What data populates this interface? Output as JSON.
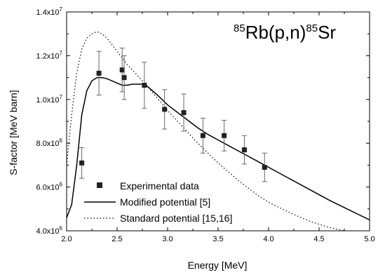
{
  "chart_data": {
    "type": "scatter",
    "title": "",
    "annotation": {
      "mass1": "85",
      "text1": "Rb(p,n)",
      "mass2": "85",
      "text2": "Sr"
    },
    "xlabel": "Energy [MeV]",
    "ylabel": "S-factor [MeV barn]",
    "xlim": [
      2.0,
      5.0
    ],
    "ylim": [
      4000000,
      14000000
    ],
    "x_ticks": [
      2.0,
      2.5,
      3.0,
      3.5,
      4.0,
      4.5,
      5.0
    ],
    "x_tick_labels": [
      "2.0",
      "2.5",
      "3.0",
      "3.5",
      "4.0",
      "4.5",
      "5.0"
    ],
    "y_ticks": [
      4000000,
      6000000,
      8000000,
      10000000,
      12000000,
      14000000
    ],
    "y_tick_labels": [
      {
        "mantissa": "4.0x10",
        "exp": "6"
      },
      {
        "mantissa": "6.0x10",
        "exp": "6"
      },
      {
        "mantissa": "8.0x10",
        "exp": "6"
      },
      {
        "mantissa": "1.0x10",
        "exp": "7"
      },
      {
        "mantissa": "1.2x10",
        "exp": "7"
      },
      {
        "mantissa": "1.4x10",
        "exp": "7"
      }
    ],
    "grid": false,
    "legend_position": "bottom-left",
    "series": [
      {
        "name": "Experimental data",
        "kind": "points",
        "marker": "square",
        "points": [
          {
            "x": 2.15,
            "y": 7100000,
            "err": 700000
          },
          {
            "x": 2.32,
            "y": 11200000,
            "err": 1000000
          },
          {
            "x": 2.55,
            "y": 11350000,
            "err": 1000000
          },
          {
            "x": 2.57,
            "y": 11000000,
            "err": 1000000
          },
          {
            "x": 2.77,
            "y": 10650000,
            "err": 1050000
          },
          {
            "x": 2.97,
            "y": 9550000,
            "err": 900000
          },
          {
            "x": 3.16,
            "y": 9400000,
            "err": 850000
          },
          {
            "x": 3.35,
            "y": 8350000,
            "err": 800000
          },
          {
            "x": 3.56,
            "y": 8350000,
            "err": 700000
          },
          {
            "x": 3.76,
            "y": 7700000,
            "err": 650000
          },
          {
            "x": 3.96,
            "y": 6900000,
            "err": 650000
          }
        ]
      },
      {
        "name": "Modified potential [5]",
        "kind": "line",
        "style": "solid",
        "x": [
          2.0,
          2.05,
          2.1,
          2.15,
          2.2,
          2.25,
          2.3,
          2.35,
          2.4,
          2.45,
          2.5,
          2.55,
          2.6,
          2.65,
          2.7,
          2.75,
          2.8,
          2.9,
          3.0,
          3.1,
          3.2,
          3.3,
          3.4,
          3.5,
          3.6,
          3.7,
          3.8,
          3.9,
          4.0,
          4.2,
          4.4,
          4.6,
          4.8,
          5.0
        ],
        "y": [
          4600000,
          5200000,
          7000000,
          9300000,
          10400000,
          10850000,
          11000000,
          11000000,
          10950000,
          10850000,
          10750000,
          10650000,
          10650000,
          10700000,
          10700000,
          10700000,
          10600000,
          10200000,
          9750000,
          9400000,
          9050000,
          8700000,
          8400000,
          8150000,
          7900000,
          7650000,
          7400000,
          7150000,
          6900000,
          6400000,
          5900000,
          5400000,
          4950000,
          4500000
        ]
      },
      {
        "name": "Standard potential [15,16]",
        "kind": "line",
        "style": "dotted",
        "x": [
          2.0,
          2.05,
          2.1,
          2.15,
          2.2,
          2.25,
          2.3,
          2.35,
          2.4,
          2.45,
          2.5,
          2.55,
          2.6,
          2.7,
          2.8,
          2.9,
          3.0,
          3.1,
          3.2,
          3.3,
          3.4,
          3.5,
          3.6,
          3.7,
          3.8,
          3.9,
          4.0,
          4.2,
          4.4,
          4.6,
          4.75
        ],
        "y": [
          7000000,
          9300000,
          11200000,
          12300000,
          12800000,
          13000000,
          13100000,
          13000000,
          12800000,
          12500000,
          12200000,
          11900000,
          11600000,
          11100000,
          10600000,
          10050000,
          9500000,
          9000000,
          8500000,
          8000000,
          7550000,
          7100000,
          6700000,
          6300000,
          5950000,
          5600000,
          5300000,
          4850000,
          4450000,
          4150000,
          4000000
        ]
      }
    ]
  }
}
